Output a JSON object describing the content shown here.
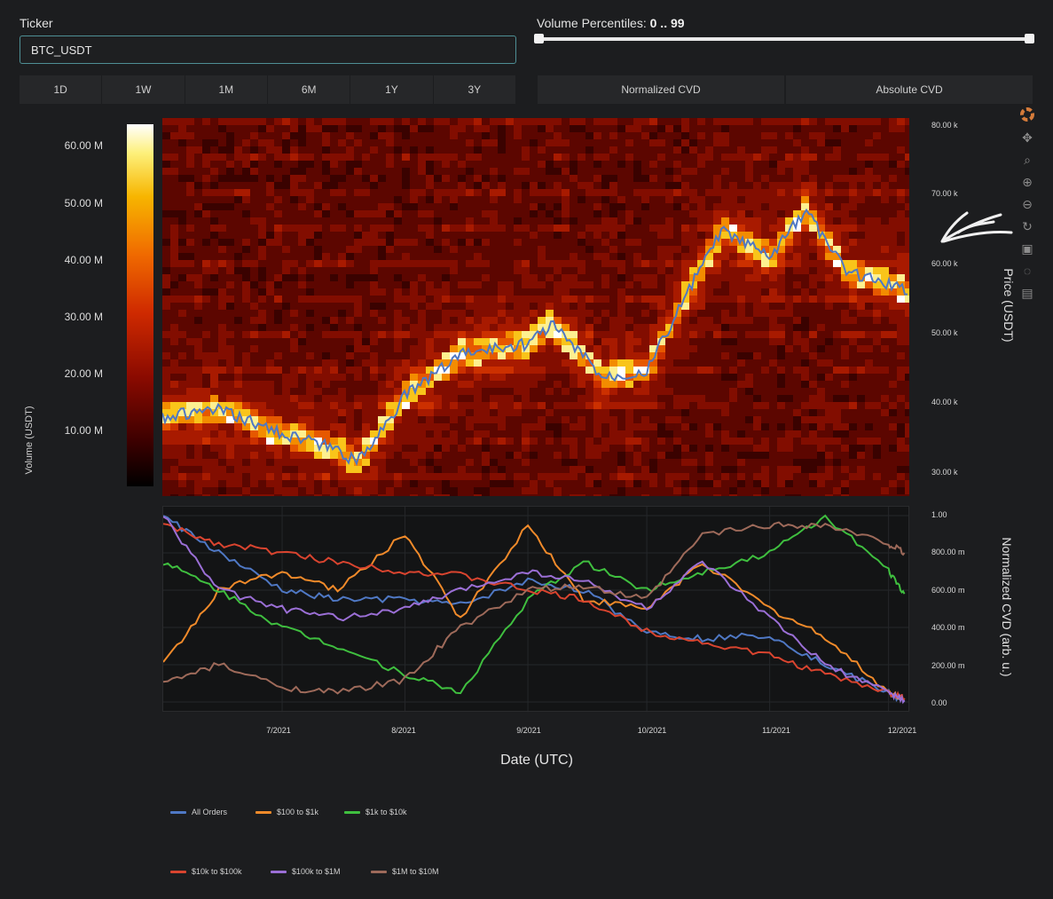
{
  "ticker": {
    "label": "Ticker",
    "value": "BTC_USDT"
  },
  "volume_percentiles": {
    "label": "Volume Percentiles:",
    "value": "0 .. 99",
    "low": 0,
    "high": 99
  },
  "range_buttons": [
    "1D",
    "1W",
    "1M",
    "6M",
    "1Y",
    "3Y"
  ],
  "cvd_buttons": [
    "Normalized CVD",
    "Absolute CVD"
  ],
  "colorbar": {
    "ticks": [
      "60.00 M",
      "50.00 M",
      "40.00 M",
      "30.00 M",
      "20.00 M",
      "10.00 M"
    ],
    "title": "Volume (USDT)"
  },
  "price_axis": {
    "ticks": [
      "80.00 k",
      "70.00 k",
      "60.00 k",
      "50.00 k",
      "40.00 k",
      "30.00 k"
    ],
    "title": "Price (USDT)"
  },
  "cvd_axis": {
    "ticks": [
      "1.00",
      "800.00 m",
      "600.00 m",
      "400.00 m",
      "200.00 m",
      "0.00"
    ],
    "title": "Normalized CVD (arb. u.)"
  },
  "x_axis": {
    "ticks": [
      "7/2021",
      "8/2021",
      "9/2021",
      "10/2021",
      "11/2021",
      "12/2021"
    ],
    "title": "Date (UTC)"
  },
  "toolbar": [
    "plotly-logo-icon",
    "pan-icon",
    "zoom-icon",
    "zoom-in-icon",
    "zoom-out-icon",
    "reset-icon",
    "save-icon",
    "lasso-icon",
    "hover-icon"
  ],
  "colors": {
    "All Orders": "#4f78c4",
    "$100 to $1k": "#f08a2a",
    "$1k to $10k": "#3fbf3f",
    "$10k to $100k": "#d9442f",
    "$100k to $1M": "#9b6fd6",
    "$1M to $10M": "#9e6a5a"
  },
  "chart_data": [
    {
      "type": "line",
      "title": "",
      "xlabel": "Date (UTC)",
      "ylabel": "Price (USDT)",
      "ylim": [
        25000,
        82000
      ],
      "x": [
        "2021-06-01",
        "2021-06-15",
        "2021-07-01",
        "2021-07-15",
        "2021-07-20",
        "2021-08-01",
        "2021-08-15",
        "2021-09-01",
        "2021-09-07",
        "2021-09-20",
        "2021-10-01",
        "2021-10-15",
        "2021-10-20",
        "2021-11-01",
        "2021-11-10",
        "2021-11-20",
        "2021-12-01",
        "2021-12-05"
      ],
      "series": [
        {
          "name": "BTC_USDT price",
          "values": [
            37000,
            38000,
            34500,
            32000,
            30000,
            40000,
            46500,
            48000,
            51000,
            43000,
            44000,
            60000,
            65000,
            61000,
            68000,
            59000,
            57000,
            56000
          ]
        }
      ]
    },
    {
      "type": "line",
      "title": "",
      "xlabel": "Date (UTC)",
      "ylabel": "Normalized CVD (arb. u.)",
      "ylim": [
        0,
        1
      ],
      "x": [
        "2021-06-01",
        "2021-06-15",
        "2021-07-01",
        "2021-07-15",
        "2021-08-01",
        "2021-08-15",
        "2021-09-01",
        "2021-09-15",
        "2021-10-01",
        "2021-10-15",
        "2021-11-01",
        "2021-11-15",
        "2021-12-01",
        "2021-12-05"
      ],
      "series": [
        {
          "name": "All Orders",
          "values": [
            1.0,
            0.8,
            0.6,
            0.55,
            0.55,
            0.52,
            0.65,
            0.6,
            0.38,
            0.34,
            0.36,
            0.2,
            0.05,
            0.0
          ]
        },
        {
          "name": "$100 to $1k",
          "values": [
            0.2,
            0.6,
            0.7,
            0.6,
            0.9,
            0.45,
            0.95,
            0.55,
            0.5,
            0.75,
            0.5,
            0.35,
            0.05,
            0.02
          ]
        },
        {
          "name": "$1k to $10k",
          "values": [
            0.75,
            0.6,
            0.4,
            0.3,
            0.15,
            0.05,
            0.55,
            0.75,
            0.6,
            0.7,
            0.8,
            1.0,
            0.7,
            0.58
          ]
        },
        {
          "name": "$10k to $100k",
          "values": [
            0.95,
            0.85,
            0.8,
            0.75,
            0.7,
            0.68,
            0.6,
            0.55,
            0.38,
            0.32,
            0.25,
            0.15,
            0.05,
            0.02
          ]
        },
        {
          "name": "$100k to $1M",
          "values": [
            1.0,
            0.6,
            0.5,
            0.45,
            0.5,
            0.6,
            0.7,
            0.65,
            0.5,
            0.75,
            0.45,
            0.2,
            0.05,
            0.01
          ]
        },
        {
          "name": "$1M to $10M",
          "values": [
            0.1,
            0.2,
            0.08,
            0.05,
            0.12,
            0.4,
            0.6,
            0.62,
            0.55,
            0.9,
            0.95,
            0.95,
            0.85,
            0.8
          ]
        }
      ]
    }
  ]
}
